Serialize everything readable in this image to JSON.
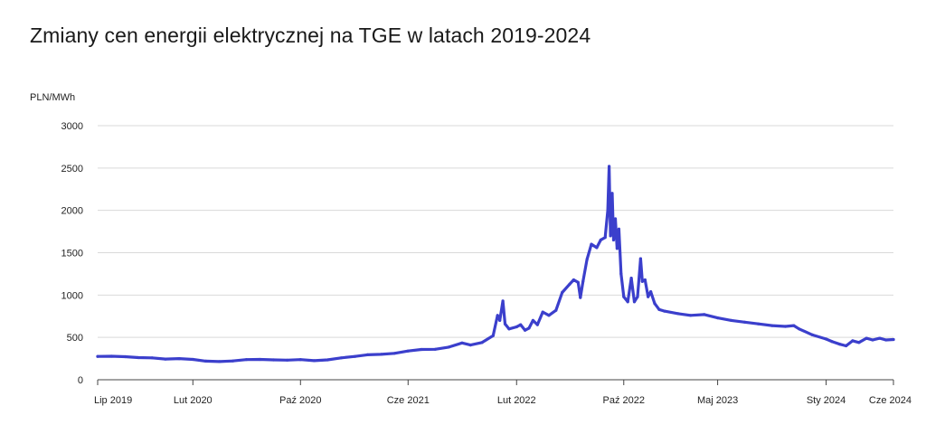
{
  "title": "Zmiany cen energii elektrycznej na TGE w latach 2019-2024",
  "accent_color": "#3b3fcc",
  "chart_data": {
    "type": "line",
    "title": "Zmiany cen energii elektrycznej na TGE w latach 2019-2024",
    "ylabel": "PLN/MWh",
    "xlabel": "",
    "ylim": [
      0,
      3000
    ],
    "yticks": [
      0,
      500,
      1000,
      1500,
      2000,
      2500,
      3000
    ],
    "grid": true,
    "x_ticks": [
      {
        "date": "2019-07-01",
        "label": "Lip 2019"
      },
      {
        "date": "2020-02-01",
        "label": "Lut 2020"
      },
      {
        "date": "2020-10-01",
        "label": "Paź 2020"
      },
      {
        "date": "2021-06-01",
        "label": "Cze 2021"
      },
      {
        "date": "2022-02-01",
        "label": "Lut 2022"
      },
      {
        "date": "2022-10-01",
        "label": "Paź 2022"
      },
      {
        "date": "2023-05-01",
        "label": "Maj 2023"
      },
      {
        "date": "2024-01-01",
        "label": "Sty 2024"
      },
      {
        "date": "2024-06-01",
        "label": "Cze 2024"
      }
    ],
    "series": [
      {
        "color": "#3b3fcc",
        "points": [
          [
            "2019-07-01",
            275
          ],
          [
            "2019-08-01",
            278
          ],
          [
            "2019-09-01",
            272
          ],
          [
            "2019-10-01",
            262
          ],
          [
            "2019-11-01",
            258
          ],
          [
            "2019-12-01",
            245
          ],
          [
            "2020-01-01",
            250
          ],
          [
            "2020-02-01",
            240
          ],
          [
            "2020-03-01",
            220
          ],
          [
            "2020-04-01",
            215
          ],
          [
            "2020-05-01",
            222
          ],
          [
            "2020-06-01",
            238
          ],
          [
            "2020-07-01",
            240
          ],
          [
            "2020-08-01",
            235
          ],
          [
            "2020-09-01",
            232
          ],
          [
            "2020-10-01",
            238
          ],
          [
            "2020-11-01",
            225
          ],
          [
            "2020-12-01",
            235
          ],
          [
            "2021-01-01",
            258
          ],
          [
            "2021-02-01",
            275
          ],
          [
            "2021-03-01",
            295
          ],
          [
            "2021-04-01",
            300
          ],
          [
            "2021-05-01",
            312
          ],
          [
            "2021-06-01",
            340
          ],
          [
            "2021-07-01",
            358
          ],
          [
            "2021-08-01",
            360
          ],
          [
            "2021-09-01",
            385
          ],
          [
            "2021-10-01",
            435
          ],
          [
            "2021-10-20",
            410
          ],
          [
            "2021-11-15",
            440
          ],
          [
            "2021-12-10",
            520
          ],
          [
            "2021-12-20",
            760
          ],
          [
            "2021-12-25",
            700
          ],
          [
            "2022-01-01",
            930
          ],
          [
            "2022-01-06",
            660
          ],
          [
            "2022-01-15",
            600
          ],
          [
            "2022-02-01",
            625
          ],
          [
            "2022-02-10",
            650
          ],
          [
            "2022-02-20",
            585
          ],
          [
            "2022-03-01",
            610
          ],
          [
            "2022-03-10",
            700
          ],
          [
            "2022-03-20",
            650
          ],
          [
            "2022-04-01",
            800
          ],
          [
            "2022-04-15",
            760
          ],
          [
            "2022-05-01",
            820
          ],
          [
            "2022-05-15",
            1030
          ],
          [
            "2022-06-01",
            1130
          ],
          [
            "2022-06-10",
            1180
          ],
          [
            "2022-06-20",
            1150
          ],
          [
            "2022-06-25",
            970
          ],
          [
            "2022-07-01",
            1160
          ],
          [
            "2022-07-10",
            1420
          ],
          [
            "2022-07-20",
            1600
          ],
          [
            "2022-08-01",
            1560
          ],
          [
            "2022-08-10",
            1650
          ],
          [
            "2022-08-20",
            1680
          ],
          [
            "2022-08-26",
            2000
          ],
          [
            "2022-08-29",
            2520
          ],
          [
            "2022-09-01",
            1700
          ],
          [
            "2022-09-05",
            2200
          ],
          [
            "2022-09-08",
            1650
          ],
          [
            "2022-09-12",
            1900
          ],
          [
            "2022-09-16",
            1550
          ],
          [
            "2022-09-20",
            1780
          ],
          [
            "2022-09-25",
            1250
          ],
          [
            "2022-10-01",
            980
          ],
          [
            "2022-10-10",
            920
          ],
          [
            "2022-10-18",
            1200
          ],
          [
            "2022-10-25",
            920
          ],
          [
            "2022-11-01",
            980
          ],
          [
            "2022-11-08",
            1430
          ],
          [
            "2022-11-12",
            1160
          ],
          [
            "2022-11-18",
            1180
          ],
          [
            "2022-11-25",
            980
          ],
          [
            "2022-12-01",
            1040
          ],
          [
            "2022-12-10",
            900
          ],
          [
            "2022-12-20",
            830
          ],
          [
            "2023-01-01",
            810
          ],
          [
            "2023-02-01",
            780
          ],
          [
            "2023-03-01",
            760
          ],
          [
            "2023-04-01",
            770
          ],
          [
            "2023-05-01",
            730
          ],
          [
            "2023-06-01",
            700
          ],
          [
            "2023-07-01",
            680
          ],
          [
            "2023-08-01",
            660
          ],
          [
            "2023-09-01",
            640
          ],
          [
            "2023-10-01",
            630
          ],
          [
            "2023-10-20",
            640
          ],
          [
            "2023-11-01",
            600
          ],
          [
            "2023-12-01",
            530
          ],
          [
            "2024-01-01",
            480
          ],
          [
            "2024-01-15",
            450
          ],
          [
            "2024-02-01",
            420
          ],
          [
            "2024-02-15",
            400
          ],
          [
            "2024-03-01",
            460
          ],
          [
            "2024-03-15",
            440
          ],
          [
            "2024-04-01",
            490
          ],
          [
            "2024-04-15",
            470
          ],
          [
            "2024-05-01",
            490
          ],
          [
            "2024-05-15",
            470
          ],
          [
            "2024-06-01",
            475
          ]
        ]
      }
    ]
  }
}
